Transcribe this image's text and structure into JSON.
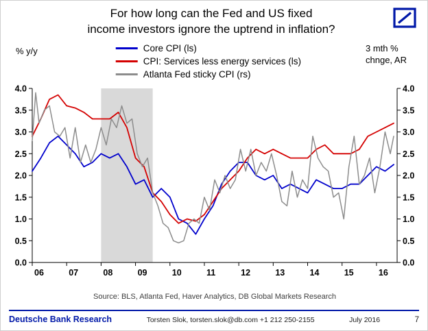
{
  "title": {
    "line1": "For how long can the Fed and US fixed",
    "line2": "income investors ignore the uptrend in inflation?",
    "full": "For how long can the Fed and US fixed income investors ignore the uptrend in inflation?"
  },
  "brand_color": "#0018A8",
  "axis_left_label": "% y/y",
  "axis_right_label": "3 mth %\nchnge, AR",
  "source": "Source: BLS, Atlanta Fed, Haver Analytics, DB Global Markets Research",
  "footer": {
    "brand": "Deutsche Bank Research",
    "contact": "Torsten Slok, torsten.slok@db.com +1 212 250-2155",
    "date": "July 2016",
    "page": "7"
  },
  "chart_data": {
    "type": "line",
    "title": "For how long can the Fed and US fixed income investors ignore the uptrend in inflation?",
    "xlabel": "",
    "ylabel_left": "% y/y",
    "ylabel_right": "3 mth % chnge, AR",
    "x_range": [
      2006,
      2016.6
    ],
    "y_range": [
      0,
      4
    ],
    "y_ticks": [
      0.0,
      0.5,
      1.0,
      1.5,
      2.0,
      2.5,
      3.0,
      3.5,
      4.0
    ],
    "x_ticks": [
      2006,
      2007,
      2008,
      2009,
      2010,
      2011,
      2012,
      2013,
      2014,
      2015,
      2016
    ],
    "x_tick_labels": [
      "06",
      "07",
      "08",
      "09",
      "10",
      "11",
      "12",
      "13",
      "14",
      "15",
      "16"
    ],
    "grid": false,
    "legend_position": "top-center",
    "recession_band": [
      2008.0,
      2009.5
    ],
    "recession_color": "#D9D9D9",
    "series": [
      {
        "name": "Core CPI (ls)",
        "color": "#0000CC",
        "axis": "left",
        "width": 1.8,
        "x": [
          2006,
          2006.25,
          2006.5,
          2006.75,
          2007,
          2007.25,
          2007.5,
          2007.75,
          2008,
          2008.25,
          2008.5,
          2008.75,
          2009,
          2009.25,
          2009.5,
          2009.75,
          2010,
          2010.25,
          2010.5,
          2010.75,
          2011,
          2011.25,
          2011.5,
          2011.75,
          2012,
          2012.25,
          2012.5,
          2012.75,
          2013,
          2013.25,
          2013.5,
          2013.75,
          2014,
          2014.25,
          2014.5,
          2014.75,
          2015,
          2015.25,
          2015.5,
          2015.75,
          2016,
          2016.25,
          2016.5
        ],
        "values": [
          2.1,
          2.4,
          2.75,
          2.9,
          2.7,
          2.5,
          2.2,
          2.3,
          2.5,
          2.4,
          2.5,
          2.2,
          1.8,
          1.9,
          1.5,
          1.7,
          1.5,
          1.0,
          0.9,
          0.65,
          1.0,
          1.3,
          1.8,
          2.1,
          2.3,
          2.3,
          2.0,
          1.9,
          2.0,
          1.7,
          1.8,
          1.7,
          1.6,
          1.9,
          1.8,
          1.7,
          1.7,
          1.8,
          1.8,
          2.0,
          2.2,
          2.1,
          2.25
        ]
      },
      {
        "name": "CPI: Services less energy services (ls)",
        "color": "#D40000",
        "axis": "left",
        "width": 1.8,
        "x": [
          2006,
          2006.25,
          2006.5,
          2006.75,
          2007,
          2007.25,
          2007.5,
          2007.75,
          2008,
          2008.25,
          2008.5,
          2008.75,
          2009,
          2009.25,
          2009.5,
          2009.75,
          2010,
          2010.25,
          2010.5,
          2010.75,
          2011,
          2011.25,
          2011.5,
          2011.75,
          2012,
          2012.25,
          2012.5,
          2012.75,
          2013,
          2013.25,
          2013.5,
          2013.75,
          2014,
          2014.25,
          2014.5,
          2014.75,
          2015,
          2015.25,
          2015.5,
          2015.75,
          2016,
          2016.25,
          2016.5
        ],
        "values": [
          2.9,
          3.3,
          3.75,
          3.85,
          3.6,
          3.55,
          3.45,
          3.3,
          3.3,
          3.3,
          3.45,
          3.1,
          2.4,
          2.2,
          1.6,
          1.4,
          1.1,
          0.9,
          1.0,
          0.95,
          1.1,
          1.4,
          1.7,
          1.9,
          2.1,
          2.4,
          2.6,
          2.5,
          2.6,
          2.5,
          2.4,
          2.4,
          2.4,
          2.6,
          2.7,
          2.5,
          2.5,
          2.5,
          2.6,
          2.9,
          3.0,
          3.1,
          3.2
        ]
      },
      {
        "name": "Atlanta Fed sticky CPI (rs)",
        "color": "#8C8C8C",
        "axis": "right",
        "width": 1.5,
        "x": [
          2006,
          2006.1,
          2006.2,
          2006.35,
          2006.5,
          2006.65,
          2006.8,
          2006.95,
          2007.1,
          2007.25,
          2007.4,
          2007.55,
          2007.7,
          2007.85,
          2008,
          2008.15,
          2008.3,
          2008.45,
          2008.6,
          2008.75,
          2008.9,
          2009.05,
          2009.2,
          2009.35,
          2009.5,
          2009.65,
          2009.8,
          2009.95,
          2010.1,
          2010.25,
          2010.4,
          2010.55,
          2010.7,
          2010.85,
          2011,
          2011.15,
          2011.3,
          2011.45,
          2011.6,
          2011.75,
          2011.9,
          2012.05,
          2012.2,
          2012.35,
          2012.5,
          2012.65,
          2012.8,
          2012.95,
          2013.1,
          2013.25,
          2013.4,
          2013.55,
          2013.7,
          2013.85,
          2014,
          2014.15,
          2014.3,
          2014.45,
          2014.6,
          2014.75,
          2014.9,
          2015.05,
          2015.2,
          2015.35,
          2015.5,
          2015.65,
          2015.8,
          2015.95,
          2016.1,
          2016.25,
          2016.4,
          2016.5
        ],
        "values": [
          2.8,
          3.9,
          3.2,
          3.5,
          3.6,
          3.0,
          2.9,
          3.1,
          2.4,
          3.1,
          2.3,
          2.7,
          2.3,
          2.6,
          3.1,
          2.7,
          3.3,
          3.1,
          3.6,
          3.2,
          3.3,
          2.5,
          2.2,
          2.4,
          1.6,
          1.3,
          0.9,
          0.8,
          0.5,
          0.45,
          0.5,
          0.9,
          1.0,
          0.9,
          1.5,
          1.2,
          1.9,
          1.6,
          2.0,
          1.7,
          1.9,
          2.6,
          2.1,
          2.6,
          2.0,
          2.3,
          2.1,
          2.5,
          2.0,
          1.4,
          1.3,
          2.1,
          1.5,
          1.9,
          1.7,
          2.9,
          2.4,
          2.2,
          2.1,
          1.5,
          1.6,
          1.0,
          2.2,
          2.9,
          1.8,
          2.0,
          2.4,
          1.6,
          2.2,
          3.0,
          2.5,
          2.9
        ]
      }
    ]
  }
}
